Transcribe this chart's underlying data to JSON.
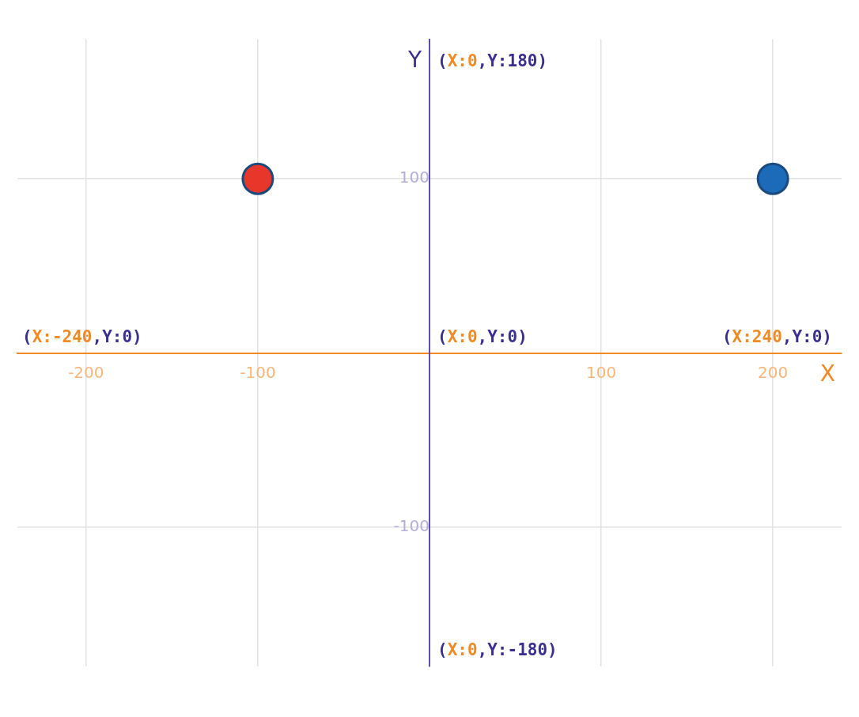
{
  "chart_data": {
    "type": "scatter",
    "xlabel": "X",
    "ylabel": "Y",
    "x": [
      -100,
      200
    ],
    "values": [
      100,
      100
    ],
    "colors": [
      "#e8372a",
      "#1b6bb8"
    ],
    "xlim": [
      -240,
      240
    ],
    "ylim": [
      -180,
      180
    ],
    "xticks": [
      -200,
      -100,
      100,
      200
    ],
    "yticks": [
      -100,
      100
    ],
    "grid": true,
    "legend": false,
    "marker": "circle",
    "annotations": [
      "(X:0,Y:180)",
      "(X:-240,Y:0)",
      "(X:0,Y:0)",
      "(X:240,Y:0)",
      "(X:0,Y:-180)"
    ]
  }
}
